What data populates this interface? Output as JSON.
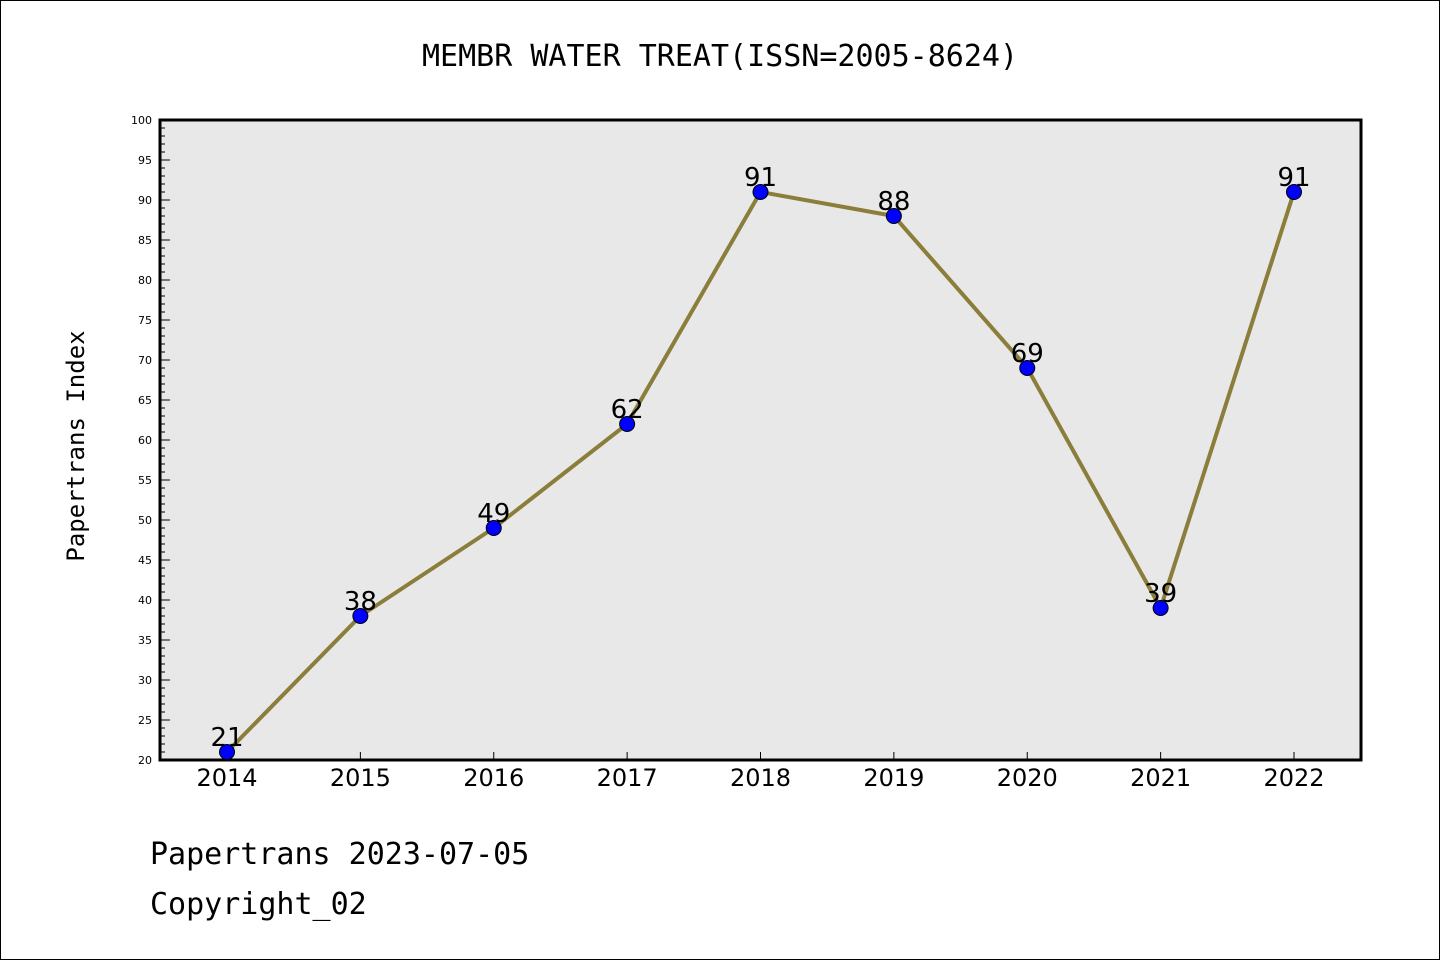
{
  "chart_data": {
    "type": "line",
    "title": "MEMBR WATER TREAT(ISSN=2005-8624)",
    "ylabel": "Papertrans Index",
    "xlabel": "",
    "categories": [
      "2014",
      "2015",
      "2016",
      "2017",
      "2018",
      "2019",
      "2020",
      "2021",
      "2022"
    ],
    "series": [
      {
        "values": [
          21,
          38,
          49,
          62,
          91,
          88,
          69,
          39,
          91
        ]
      }
    ],
    "ylim": [
      20,
      100
    ],
    "yticks": [
      20,
      25,
      30,
      35,
      40,
      45,
      50,
      55,
      60,
      65,
      70,
      75,
      80,
      85,
      90,
      95,
      100
    ],
    "data_labels": [
      "21",
      "38",
      "49",
      "62",
      "91",
      "88",
      "69",
      "39",
      "91"
    ],
    "grid": false,
    "colors": {
      "line": "#8B7D3A",
      "marker": "#0000FF",
      "plot_bg": "#E8E8E8"
    }
  },
  "footer": {
    "line1": "Papertrans 2023-07-05",
    "line2": "Copyright_02"
  }
}
